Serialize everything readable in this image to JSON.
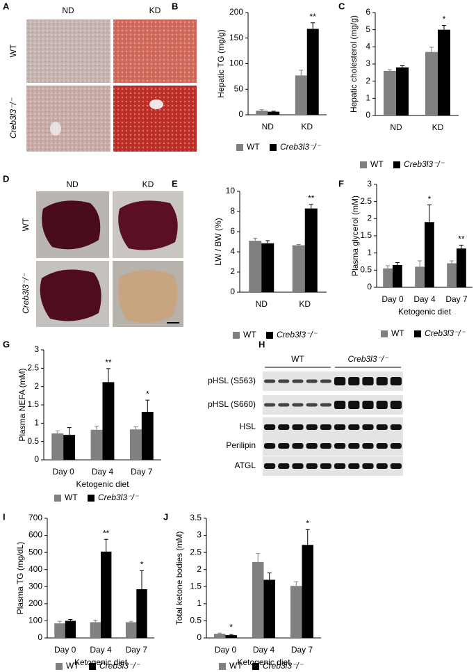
{
  "image_panels": [
    {
      "panel": "A",
      "columns": [
        "ND",
        "KD"
      ],
      "rows": [
        "WT",
        "Creb3l3⁻/⁻"
      ]
    },
    {
      "panel": "D",
      "columns": [
        "ND",
        "KD"
      ],
      "rows": [
        "WT",
        "Creb3l3⁻/⁻"
      ]
    }
  ],
  "blot": {
    "panel": "H",
    "groups": [
      "WT",
      "Creb3l3⁻/⁻"
    ],
    "rows": [
      "pHSL (S563)",
      "pHSL (S660)",
      "HSL",
      "Perilipin",
      "ATGL"
    ]
  },
  "chart_data": [
    {
      "panel": "B",
      "type": "bar",
      "ylabel": "Hepatic TG (mg/g)",
      "categories": [
        "ND",
        "KD"
      ],
      "series": [
        {
          "name": "WT",
          "color": "#808080",
          "values": [
            8,
            77
          ],
          "errors": [
            2,
            10
          ]
        },
        {
          "name": "Creb3l3⁻/⁻",
          "color": "#000000",
          "values": [
            6,
            168
          ],
          "errors": [
            1,
            12
          ]
        }
      ],
      "significance": [
        null,
        "**"
      ],
      "ylim": [
        0,
        200
      ],
      "yticks": [
        0,
        50,
        100,
        150,
        200
      ]
    },
    {
      "panel": "C",
      "type": "bar",
      "ylabel": "Hepatic cholesterol (mg/g)",
      "categories": [
        "ND",
        "KD"
      ],
      "series": [
        {
          "name": "WT",
          "color": "#808080",
          "values": [
            2.6,
            3.7
          ],
          "errors": [
            0.07,
            0.28
          ]
        },
        {
          "name": "Creb3l3⁻/⁻",
          "color": "#000000",
          "values": [
            2.8,
            5.0
          ],
          "errors": [
            0.1,
            0.25
          ]
        }
      ],
      "significance": [
        null,
        "*"
      ],
      "ylim": [
        0,
        6
      ],
      "yticks": [
        0,
        1,
        2,
        3,
        4,
        5,
        6
      ]
    },
    {
      "panel": "E",
      "type": "bar",
      "ylabel": "LW / BW (%)",
      "categories": [
        "ND",
        "KD"
      ],
      "series": [
        {
          "name": "WT",
          "color": "#808080",
          "values": [
            5.1,
            4.65
          ],
          "errors": [
            0.25,
            0.07
          ]
        },
        {
          "name": "Creb3l3⁻/⁻",
          "color": "#000000",
          "values": [
            4.85,
            8.3
          ],
          "errors": [
            0.25,
            0.4
          ]
        }
      ],
      "significance": [
        null,
        "**"
      ],
      "ylim": [
        0,
        10
      ],
      "yticks": [
        0,
        2,
        4,
        6,
        8,
        10
      ]
    },
    {
      "panel": "F",
      "type": "bar",
      "ylabel": "Plasma glycerol (mM)",
      "xlabel": "Ketogenic diet",
      "categories": [
        "Day 0",
        "Day 4",
        "Day 7"
      ],
      "series": [
        {
          "name": "WT",
          "color": "#808080",
          "values": [
            0.55,
            0.6,
            0.7
          ],
          "errors": [
            0.08,
            0.17,
            0.07
          ]
        },
        {
          "name": "Creb3l3⁻/⁻",
          "color": "#000000",
          "values": [
            0.65,
            1.9,
            1.13
          ],
          "errors": [
            0.07,
            0.5,
            0.1
          ]
        }
      ],
      "significance": [
        null,
        "*",
        "**"
      ],
      "ylim": [
        0,
        3
      ],
      "yticks": [
        0,
        0.5,
        1,
        1.5,
        2,
        2.5,
        3
      ]
    },
    {
      "panel": "G",
      "type": "bar",
      "ylabel": "Plasma NEFA (mM)",
      "xlabel": "Ketogenic diet",
      "categories": [
        "Day 0",
        "Day 4",
        "Day 7"
      ],
      "series": [
        {
          "name": "WT",
          "color": "#808080",
          "values": [
            0.72,
            0.82,
            0.83
          ],
          "errors": [
            0.07,
            0.1,
            0.07
          ]
        },
        {
          "name": "Creb3l3⁻/⁻",
          "color": "#000000",
          "values": [
            0.68,
            2.12,
            1.31
          ],
          "errors": [
            0.2,
            0.37,
            0.32
          ]
        }
      ],
      "significance": [
        null,
        "**",
        "*"
      ],
      "ylim": [
        0,
        3
      ],
      "yticks": [
        0,
        0.5,
        1,
        1.5,
        2,
        2.5,
        3
      ]
    },
    {
      "panel": "I",
      "type": "bar",
      "ylabel": "Plasma TG (mg/dL)",
      "xlabel": "Ketogenic diet",
      "categories": [
        "Day 0",
        "Day 4",
        "Day 7"
      ],
      "series": [
        {
          "name": "WT",
          "color": "#808080",
          "values": [
            85,
            92,
            92
          ],
          "errors": [
            12,
            12,
            5
          ]
        },
        {
          "name": "Creb3l3⁻/⁻",
          "color": "#000000",
          "values": [
            100,
            505,
            285
          ],
          "errors": [
            8,
            72,
            108
          ]
        }
      ],
      "significance": [
        null,
        "**",
        "*"
      ],
      "ylim": [
        0,
        700
      ],
      "yticks": [
        0,
        100,
        200,
        300,
        400,
        500,
        600,
        700
      ]
    },
    {
      "panel": "J",
      "type": "bar",
      "ylabel": "Total ketone bodies (mM)",
      "xlabel": "Ketogenic diet",
      "categories": [
        "Day 0",
        "Day 4",
        "Day 7"
      ],
      "series": [
        {
          "name": "WT",
          "color": "#808080",
          "values": [
            0.12,
            2.22,
            1.52
          ],
          "errors": [
            0.02,
            0.25,
            0.12
          ]
        },
        {
          "name": "Creb3l3⁻/⁻",
          "color": "#000000",
          "values": [
            0.08,
            1.7,
            2.72
          ],
          "errors": [
            0.02,
            0.2,
            0.45
          ]
        }
      ],
      "significance": [
        "*",
        null,
        "*"
      ],
      "ylim": [
        0,
        3.5
      ],
      "yticks": [
        0,
        0.5,
        1,
        1.5,
        2,
        2.5,
        3,
        3.5
      ]
    }
  ]
}
